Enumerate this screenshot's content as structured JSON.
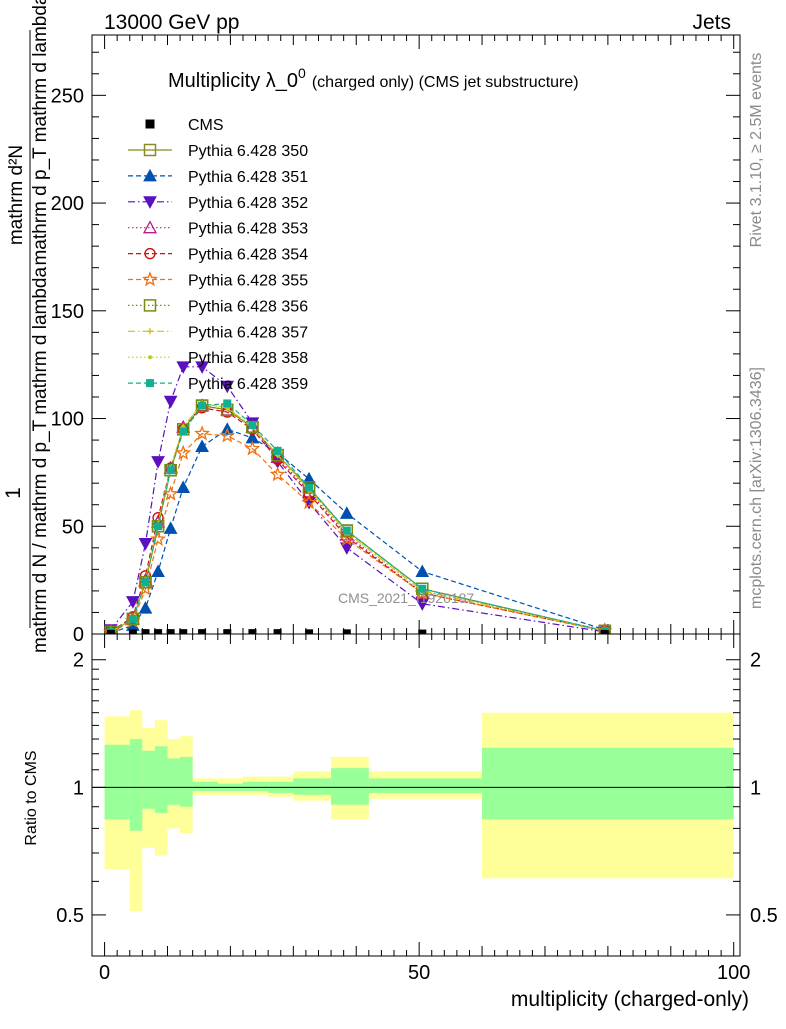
{
  "header": {
    "left": "13000 GeV pp",
    "right": "Jets"
  },
  "side_labels": {
    "rivet": "Rivet 3.1.10, ≥ 2.5M events",
    "mcplots": "mcplots.cern.ch [arXiv:1306.3436]"
  },
  "watermark": "CMS_2021_I1920187",
  "chart_data": [
    {
      "type": "line",
      "title": "Multiplicity λ_0",
      "title_sup": "0",
      "title_note": "(charged only) (CMS jet substructure)",
      "ylabel_top": "1",
      "ylabel_main": "mathrm d N / mathrm d p_T mathrm d lambda",
      "ylabel_frac": "mathrm d²N",
      "ylabel_frac_den": "mathrm d p_T mathrm d lambda",
      "xlim": [
        -2,
        101
      ],
      "ylim": [
        0,
        278
      ],
      "yticks": [
        0,
        50,
        100,
        150,
        200,
        250
      ],
      "grid": false,
      "legend_position": "top-left",
      "x": [
        1,
        4.5,
        6.5,
        8.5,
        10.5,
        12.5,
        15.5,
        19.5,
        23.5,
        27.5,
        32.5,
        38.5,
        50.5,
        79.5
      ],
      "data_series": {
        "name": "CMS",
        "values": [
          0.1,
          0.3,
          0.4,
          0.4,
          0.4,
          0.4,
          0.4,
          0.4,
          0.4,
          0.4,
          0.3,
          0.3,
          0.2,
          0.05
        ]
      },
      "series": [
        {
          "name": "Pythia 6.428 350",
          "color": "#8a8a20",
          "marker": "square-open",
          "dash": "solid",
          "values": [
            0.9,
            7,
            24,
            50,
            76,
            95,
            106,
            104,
            96,
            83,
            68,
            48,
            21,
            1.5
          ]
        },
        {
          "name": "Pythia 6.428 351",
          "color": "#0050b0",
          "marker": "triangle-up",
          "dash": "dashed",
          "values": [
            0.5,
            4,
            12,
            29,
            49,
            68,
            87,
            95,
            91,
            84,
            72,
            56,
            29,
            2
          ]
        },
        {
          "name": "Pythia 6.428 352",
          "color": "#5a10c0",
          "marker": "triangle-down",
          "dash": "dashdot",
          "values": [
            2,
            15,
            42,
            80,
            108,
            124,
            124,
            115,
            98,
            80,
            61,
            40,
            14,
            1
          ]
        },
        {
          "name": "Pythia 6.428 353",
          "color": "#b81c8a",
          "marker": "triangle-up-open",
          "dash": "dotted",
          "values": [
            1,
            7,
            25,
            52,
            77,
            96,
            106,
            104,
            96,
            82,
            66,
            46,
            19,
            1.5
          ]
        },
        {
          "name": "Pythia 6.428 354",
          "color": "#d01010",
          "marker": "circle-open",
          "dash": "dashed",
          "values": [
            1,
            8,
            27,
            54,
            77,
            95,
            105,
            103,
            95,
            81,
            65,
            45,
            19,
            1.5
          ]
        },
        {
          "name": "Pythia 6.428 355",
          "color": "#f07010",
          "marker": "star-open",
          "dash": "dashed",
          "values": [
            0.8,
            6,
            21,
            44,
            65,
            84,
            93,
            92,
            86,
            74,
            61,
            44,
            19,
            1.5
          ]
        },
        {
          "name": "Pythia 6.428 356",
          "color": "#7a8a10",
          "marker": "square-open",
          "dash": "dotted",
          "values": [
            1,
            7,
            24,
            50,
            76,
            95,
            106,
            104,
            96,
            83,
            68,
            48,
            21,
            1.5
          ]
        },
        {
          "name": "Pythia 6.428 357",
          "color": "#d8c010",
          "marker": "cross-small",
          "dash": "dashdot",
          "values": [
            1,
            7,
            25,
            51,
            77,
            96,
            107,
            105,
            96,
            83,
            67,
            47,
            20,
            1.5
          ]
        },
        {
          "name": "Pythia 6.428 358",
          "color": "#b0d020",
          "marker": "dot-small",
          "dash": "dotted",
          "values": [
            1,
            7,
            25,
            51,
            77,
            96,
            107,
            105,
            96,
            83,
            67,
            47,
            20,
            1.5
          ]
        },
        {
          "name": "Pythia 6.428 359",
          "color": "#10b090",
          "marker": "square-filled",
          "dash": "dashed",
          "values": [
            1,
            7,
            24,
            50,
            76,
            94,
            106,
            107,
            97,
            85,
            68,
            48,
            21,
            1.5
          ]
        }
      ]
    },
    {
      "type": "area",
      "ylabel": "Ratio to CMS",
      "xlabel": "multiplicity (charged-only)",
      "xlim": [
        -2,
        101
      ],
      "ylim": [
        0.4,
        2.3
      ],
      "yticks": [
        0.5,
        1,
        2
      ],
      "xticks": [
        0,
        50,
        100
      ],
      "reference_line": 1,
      "bins": [
        {
          "lo": 0,
          "hi": 4,
          "yellow": [
            0.64,
            1.47
          ],
          "green": [
            0.84,
            1.26
          ]
        },
        {
          "lo": 4,
          "hi": 6,
          "yellow": [
            0.51,
            1.52
          ],
          "green": [
            0.79,
            1.3
          ]
        },
        {
          "lo": 6,
          "hi": 8,
          "yellow": [
            0.72,
            1.38
          ],
          "green": [
            0.89,
            1.22
          ]
        },
        {
          "lo": 8,
          "hi": 10,
          "yellow": [
            0.69,
            1.44
          ],
          "green": [
            0.87,
            1.25
          ]
        },
        {
          "lo": 10,
          "hi": 12,
          "yellow": [
            0.8,
            1.3
          ],
          "green": [
            0.91,
            1.17
          ]
        },
        {
          "lo": 12,
          "hi": 14,
          "yellow": [
            0.78,
            1.32
          ],
          "green": [
            0.9,
            1.18
          ]
        },
        {
          "lo": 14,
          "hi": 18,
          "yellow": [
            0.96,
            1.05
          ],
          "green": [
            0.98,
            1.03
          ]
        },
        {
          "lo": 18,
          "hi": 22,
          "yellow": [
            0.96,
            1.05
          ],
          "green": [
            0.98,
            1.02
          ]
        },
        {
          "lo": 22,
          "hi": 26,
          "yellow": [
            0.96,
            1.06
          ],
          "green": [
            0.98,
            1.03
          ]
        },
        {
          "lo": 26,
          "hi": 30,
          "yellow": [
            0.95,
            1.06
          ],
          "green": [
            0.97,
            1.03
          ]
        },
        {
          "lo": 30,
          "hi": 36,
          "yellow": [
            0.93,
            1.09
          ],
          "green": [
            0.96,
            1.05
          ]
        },
        {
          "lo": 36,
          "hi": 42,
          "yellow": [
            0.84,
            1.18
          ],
          "green": [
            0.91,
            1.11
          ]
        },
        {
          "lo": 42,
          "hi": 60,
          "yellow": [
            0.94,
            1.09
          ],
          "green": [
            0.97,
            1.05
          ]
        },
        {
          "lo": 60,
          "hi": 100,
          "yellow": [
            0.61,
            1.5
          ],
          "green": [
            0.84,
            1.24
          ]
        }
      ]
    }
  ]
}
